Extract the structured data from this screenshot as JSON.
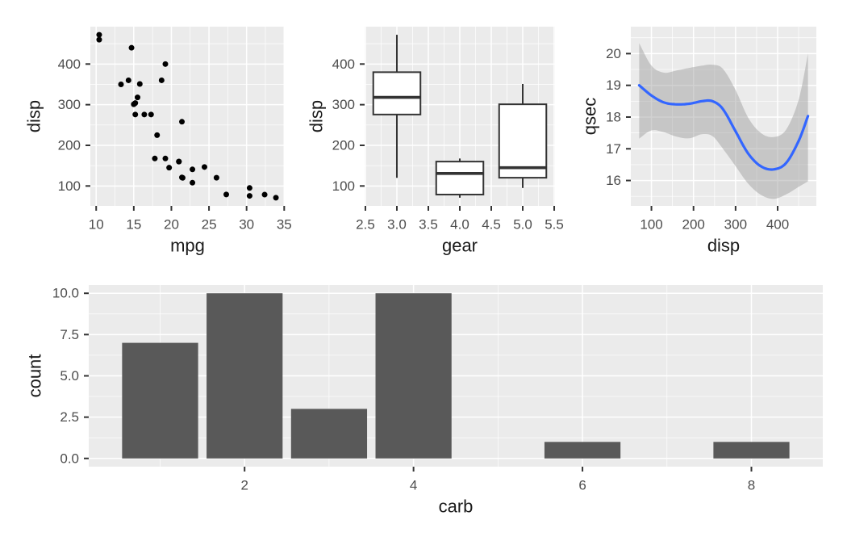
{
  "figure": {
    "background": "#FFFFFF",
    "description": "Four-panel ggplot2 figure of mtcars data"
  },
  "theme": {
    "panel_bg": "#EBEBEB",
    "grid_color": "#FFFFFF",
    "tick_color": "#333333",
    "tick_label_color": "#4D4D4D",
    "axis_title_color": "#1A1A1A"
  },
  "chart_data": [
    {
      "type": "scatter",
      "xlabel": "mpg",
      "ylabel": "disp",
      "xlim": [
        9.225,
        35.075
      ],
      "ylim": [
        51,
        492
      ],
      "grid": true,
      "xticks": {
        "values": [
          10,
          15,
          20,
          25,
          30,
          35
        ],
        "labels": [
          "10",
          "15",
          "20",
          "25",
          "30",
          "35"
        ]
      },
      "yticks": {
        "values": [
          100,
          200,
          300,
          400
        ],
        "labels": [
          "100",
          "200",
          "300",
          "400"
        ]
      },
      "point_color": "#000000",
      "point_radius": 3.5,
      "points": [
        [
          21.0,
          160.0
        ],
        [
          21.0,
          160.0
        ],
        [
          22.8,
          108.0
        ],
        [
          21.4,
          258.0
        ],
        [
          18.7,
          360.0
        ],
        [
          18.1,
          225.0
        ],
        [
          14.3,
          360.0
        ],
        [
          24.4,
          146.7
        ],
        [
          22.8,
          140.8
        ],
        [
          19.2,
          167.6
        ],
        [
          17.8,
          167.6
        ],
        [
          16.4,
          275.8
        ],
        [
          17.3,
          275.8
        ],
        [
          15.2,
          275.8
        ],
        [
          10.4,
          472.0
        ],
        [
          10.4,
          460.0
        ],
        [
          14.7,
          440.0
        ],
        [
          32.4,
          78.7
        ],
        [
          30.4,
          75.7
        ],
        [
          33.9,
          71.1
        ],
        [
          21.5,
          120.1
        ],
        [
          15.5,
          318.0
        ],
        [
          15.2,
          304.0
        ],
        [
          13.3,
          350.0
        ],
        [
          19.2,
          400.0
        ],
        [
          27.3,
          79.0
        ],
        [
          26.0,
          120.3
        ],
        [
          30.4,
          95.1
        ],
        [
          15.8,
          351.0
        ],
        [
          19.7,
          145.0
        ],
        [
          15.0,
          301.0
        ],
        [
          21.4,
          121.0
        ]
      ]
    },
    {
      "type": "boxplot",
      "xlabel": "gear",
      "ylabel": "disp",
      "xlim": [
        2.4875,
        5.5125
      ],
      "ylim": [
        51,
        492
      ],
      "grid": true,
      "xticks": {
        "values": [
          2.5,
          3.0,
          3.5,
          4.0,
          4.5,
          5.0,
          5.5
        ],
        "labels": [
          "2.5",
          "3.0",
          "3.5",
          "4.0",
          "4.5",
          "5.0",
          "5.5"
        ]
      },
      "yticks": {
        "values": [
          100,
          200,
          300,
          400
        ],
        "labels": [
          "100",
          "200",
          "300",
          "400"
        ]
      },
      "box_fill": "#FFFFFF",
      "box_stroke": "#333333",
      "box_halfwidth": 0.375,
      "boxes": [
        {
          "x": 3,
          "whisker_low": 120.1,
          "q1": 275.8,
          "median": 318.0,
          "q3": 380.0,
          "whisker_high": 472.0
        },
        {
          "x": 4,
          "whisker_low": 71.1,
          "q1": 78.9,
          "median": 130.9,
          "q3": 160.0,
          "whisker_high": 167.6
        },
        {
          "x": 5,
          "whisker_low": 95.1,
          "q1": 120.3,
          "median": 145.0,
          "q3": 301.0,
          "whisker_high": 351.0
        }
      ]
    },
    {
      "type": "smooth",
      "xlabel": "disp",
      "ylabel": "qsec",
      "xlim": [
        51,
        492
      ],
      "ylim": [
        15.2,
        20.85
      ],
      "grid": true,
      "xticks": {
        "values": [
          100,
          200,
          300,
          400
        ],
        "labels": [
          "100",
          "200",
          "300",
          "400"
        ]
      },
      "yticks": {
        "values": [
          16,
          17,
          18,
          19,
          20
        ],
        "labels": [
          "16",
          "17",
          "18",
          "19",
          "20"
        ]
      },
      "line_color": "#3366FF",
      "line_width": 3.2,
      "ribbon_color": "#999999",
      "ribbon_opacity": 0.45,
      "x": [
        71,
        100,
        130,
        160,
        190,
        220,
        245,
        270,
        300,
        330,
        360,
        390,
        420,
        450,
        472
      ],
      "y": [
        19.0,
        18.68,
        18.46,
        18.4,
        18.42,
        18.5,
        18.5,
        18.25,
        17.55,
        16.85,
        16.45,
        16.35,
        16.55,
        17.25,
        18.03
      ],
      "ci_upper": [
        20.33,
        19.62,
        19.4,
        19.47,
        19.55,
        19.62,
        19.65,
        19.52,
        18.85,
        17.98,
        17.5,
        17.37,
        17.6,
        18.55,
        20.0
      ],
      "ci_lower": [
        17.32,
        17.58,
        17.52,
        17.38,
        17.33,
        17.46,
        17.4,
        17.0,
        16.45,
        15.9,
        15.55,
        15.42,
        15.56,
        15.8,
        15.97
      ]
    },
    {
      "type": "bar",
      "xlabel": "carb",
      "ylabel": "count",
      "xlim": [
        0.155,
        8.845
      ],
      "ylim": [
        -0.5,
        10.5
      ],
      "grid": true,
      "xticks": {
        "values": [
          2,
          4,
          6,
          8
        ],
        "labels": [
          "2",
          "4",
          "6",
          "8"
        ]
      },
      "yticks": {
        "values": [
          0,
          2.5,
          5,
          7.5,
          10
        ],
        "labels": [
          "0.0",
          "2.5",
          "5.0",
          "7.5",
          "10.0"
        ]
      },
      "bar_fill": "#595959",
      "bar_width": 0.9,
      "categories": [
        1,
        2,
        3,
        4,
        6,
        8
      ],
      "values": [
        7,
        10,
        3,
        10,
        1,
        1
      ]
    }
  ]
}
